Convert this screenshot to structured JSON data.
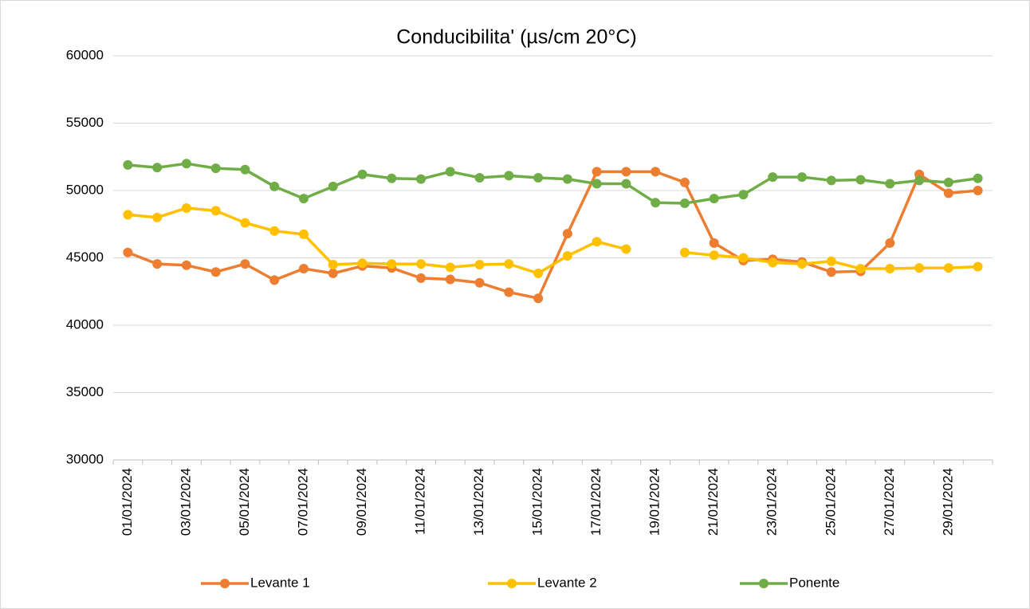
{
  "chart_data": {
    "type": "line",
    "title": "Conducibilita' (µs/cm 20°C)",
    "categories": [
      "01/01/2024",
      null,
      "03/01/2024",
      null,
      "05/01/2024",
      null,
      "07/01/2024",
      null,
      "09/01/2024",
      null,
      "11/01/2024",
      null,
      "13/01/2024",
      null,
      "15/01/2024",
      null,
      "17/01/2024",
      null,
      "19/01/2024",
      null,
      "21/01/2024",
      null,
      "23/01/2024",
      null,
      "25/01/2024",
      null,
      "27/01/2024",
      null,
      "29/01/2024",
      null
    ],
    "series": [
      {
        "name": "Levante 1",
        "color": "#ed7d31",
        "values": [
          45400,
          44550,
          44450,
          43950,
          44550,
          43350,
          44200,
          43850,
          44400,
          44250,
          43500,
          43400,
          43150,
          42450,
          42000,
          46800,
          51400,
          51400,
          51400,
          50600,
          46100,
          44800,
          44900,
          44700,
          43950,
          44000,
          46100,
          51200,
          49800,
          50000
        ]
      },
      {
        "name": "Levante 2",
        "color": "#ffc000",
        "values": [
          48200,
          48000,
          48700,
          48500,
          47600,
          47000,
          46750,
          44500,
          44600,
          44550,
          44550,
          44300,
          44500,
          44550,
          43850,
          45150,
          46200,
          45650,
          null,
          45400,
          45200,
          45000,
          44650,
          44550,
          44750,
          44200,
          44200,
          44250,
          44250,
          44350
        ]
      },
      {
        "name": "Ponente",
        "color": "#70ad47",
        "values": [
          51900,
          51700,
          52000,
          51650,
          51550,
          50300,
          49400,
          50300,
          51200,
          50900,
          50850,
          51400,
          50950,
          51100,
          50950,
          50850,
          50500,
          50500,
          49100,
          49050,
          49400,
          49700,
          51000,
          51000,
          50750,
          50800,
          50500,
          50750,
          50600,
          50900
        ]
      }
    ],
    "ylim": [
      30000,
      60000
    ],
    "yticks": [
      30000,
      35000,
      40000,
      45000,
      50000,
      55000,
      60000
    ],
    "grid": true,
    "legend": "bottom"
  }
}
